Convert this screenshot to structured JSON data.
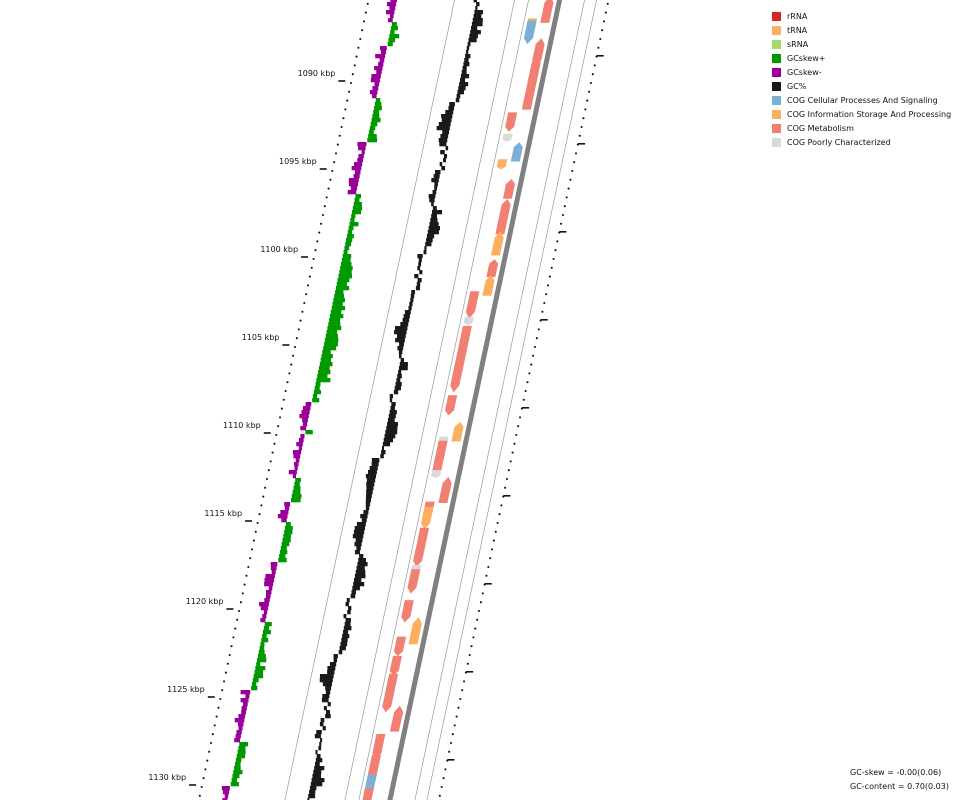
{
  "ticks": [
    {
      "label": "1090 kbp",
      "kbp": 1090
    },
    {
      "label": "1095 kbp",
      "kbp": 1095
    },
    {
      "label": "1100 kbp",
      "kbp": 1100
    },
    {
      "label": "1105 kbp",
      "kbp": 1105
    },
    {
      "label": "1110 kbp",
      "kbp": 1110
    },
    {
      "label": "1115 kbp",
      "kbp": 1115
    },
    {
      "label": "1120 kbp",
      "kbp": 1120
    },
    {
      "label": "1125 kbp",
      "kbp": 1125
    },
    {
      "label": "1130 kbp",
      "kbp": 1130
    }
  ],
  "legend": [
    {
      "label": "rRNA",
      "color": "#d62728"
    },
    {
      "label": "tRNA",
      "color": "#fdae61"
    },
    {
      "label": "sRNA",
      "color": "#a6d96a"
    },
    {
      "label": "GCskew+",
      "color": "#009900"
    },
    {
      "label": "GCskew-",
      "color": "#990099"
    },
    {
      "label": "GC%",
      "color": "#1a1a1a"
    },
    {
      "label": "COG Cellular Processes And Signaling",
      "color": "#7bafd4"
    },
    {
      "label": "COG Information Storage And Processing",
      "color": "#fdae61"
    },
    {
      "label": "COG Metabolism",
      "color": "#f28072"
    },
    {
      "label": "COG Poorly Characterized",
      "color": "#d9d9d9"
    }
  ],
  "stats": {
    "gc_skew": "GC-skew = -0.00(0.06)",
    "gc_content": "GC-content = 0.70(0.03)"
  },
  "colors": {
    "gc_skew_pos": "#009900",
    "gc_skew_neg": "#990099",
    "gc_content": "#1a1a1a",
    "backbone": "#808080",
    "guide": "#999999"
  },
  "features": [
    {
      "kbp": 1086.1,
      "strand": 1,
      "cat": "metabolism"
    },
    {
      "kbp": 1086.9,
      "strand": -1,
      "cat": "tRNA"
    },
    {
      "kbp": 1087.4,
      "strand": -1,
      "cat": "cellular"
    },
    {
      "kbp": 1088.4,
      "strand": 1,
      "cat": "metabolism"
    },
    {
      "kbp": 1089.5,
      "strand": 1,
      "cat": "metabolism"
    },
    {
      "kbp": 1090.3,
      "strand": 1,
      "cat": "metabolism"
    },
    {
      "kbp": 1091.2,
      "strand": 1,
      "cat": "metabolism"
    },
    {
      "kbp": 1092.5,
      "strand": -1,
      "cat": "metabolism"
    },
    {
      "kbp": 1093.4,
      "strand": -1,
      "cat": "poor"
    },
    {
      "kbp": 1094.2,
      "strand": 1,
      "cat": "cellular"
    },
    {
      "kbp": 1094.9,
      "strand": -1,
      "cat": "tRNA"
    },
    {
      "kbp": 1096.3,
      "strand": 1,
      "cat": "metabolism"
    },
    {
      "kbp": 1097.5,
      "strand": 1,
      "cat": "metabolism"
    },
    {
      "kbp": 1098.3,
      "strand": 1,
      "cat": "metabolism"
    },
    {
      "kbp": 1099.4,
      "strand": 1,
      "cat": "info"
    },
    {
      "kbp": 1100.8,
      "strand": 1,
      "cat": "metabolism"
    },
    {
      "kbp": 1101.8,
      "strand": 1,
      "cat": "info"
    },
    {
      "kbp": 1102.9,
      "strand": -1,
      "cat": "metabolism"
    },
    {
      "kbp": 1103.8,
      "strand": -1,
      "cat": "poor"
    },
    {
      "kbp": 1104.7,
      "strand": -1,
      "cat": "metabolism"
    },
    {
      "kbp": 1105.4,
      "strand": -1,
      "cat": "metabolism"
    },
    {
      "kbp": 1106.2,
      "strand": -1,
      "cat": "metabolism"
    },
    {
      "kbp": 1107.1,
      "strand": -1,
      "cat": "metabolism"
    },
    {
      "kbp": 1108.6,
      "strand": -1,
      "cat": "metabolism"
    },
    {
      "kbp": 1110.1,
      "strand": 1,
      "cat": "info"
    },
    {
      "kbp": 1110.6,
      "strand": -1,
      "cat": "poor"
    },
    {
      "kbp": 1111.4,
      "strand": -1,
      "cat": "metabolism"
    },
    {
      "kbp": 1112.1,
      "strand": -1,
      "cat": "metabolism"
    },
    {
      "kbp": 1112.5,
      "strand": -1,
      "cat": "poor"
    },
    {
      "kbp": 1113.4,
      "strand": 1,
      "cat": "metabolism"
    },
    {
      "kbp": 1114.6,
      "strand": -1,
      "cat": "metabolism"
    },
    {
      "kbp": 1115.0,
      "strand": -1,
      "cat": "info"
    },
    {
      "kbp": 1116.1,
      "strand": -1,
      "cat": "metabolism"
    },
    {
      "kbp": 1117.1,
      "strand": -1,
      "cat": "metabolism"
    },
    {
      "kbp": 1117.9,
      "strand": -1,
      "cat": "poor"
    },
    {
      "kbp": 1118.6,
      "strand": -1,
      "cat": "metabolism"
    },
    {
      "kbp": 1120.3,
      "strand": -1,
      "cat": "metabolism"
    },
    {
      "kbp": 1121.4,
      "strand": 1,
      "cat": "info"
    },
    {
      "kbp": 1122.3,
      "strand": -1,
      "cat": "metabolism"
    },
    {
      "kbp": 1123.4,
      "strand": -1,
      "cat": "metabolism"
    },
    {
      "kbp": 1124.5,
      "strand": -1,
      "cat": "metabolism"
    },
    {
      "kbp": 1125.4,
      "strand": -1,
      "cat": "metabolism"
    },
    {
      "kbp": 1126.4,
      "strand": 1,
      "cat": "metabolism"
    },
    {
      "kbp": 1128.0,
      "strand": -1,
      "cat": "metabolism"
    },
    {
      "kbp": 1129.2,
      "strand": -1,
      "cat": "metabolism"
    },
    {
      "kbp": 1130.3,
      "strand": -1,
      "cat": "cellular"
    },
    {
      "kbp": 1130.9,
      "strand": -1,
      "cat": "metabolism"
    }
  ]
}
